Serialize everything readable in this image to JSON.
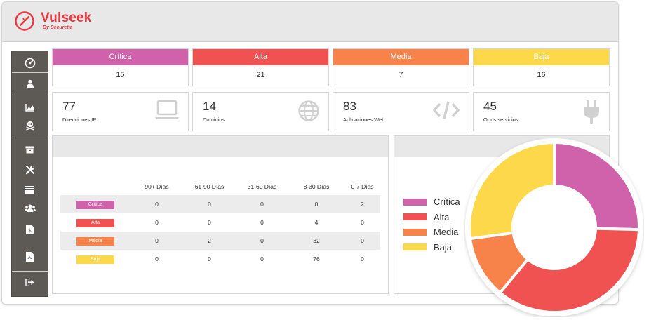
{
  "brand": {
    "name": "Vulseek",
    "tagline": "By Securetia",
    "color": "#e8373f"
  },
  "sidebar": {
    "items": [
      {
        "icon": "dashboard-gauge-icon"
      },
      {
        "icon": "user-icon"
      },
      {
        "icon": "area-chart-icon"
      },
      {
        "icon": "skull-crossbones-icon"
      },
      {
        "icon": "archive-box-icon"
      },
      {
        "icon": "tools-icon"
      },
      {
        "icon": "list-icon"
      },
      {
        "icon": "users-icon"
      },
      {
        "icon": "invoice-file-icon"
      },
      {
        "icon": "pdf-file-icon"
      },
      {
        "icon": "sign-out-icon"
      }
    ]
  },
  "severity": [
    {
      "label": "Crítica",
      "value": "15",
      "color": "#d062ac"
    },
    {
      "label": "Alta",
      "value": "21",
      "color": "#f05252"
    },
    {
      "label": "Media",
      "value": "7",
      "color": "#f7834a"
    },
    {
      "label": "Baja",
      "value": "16",
      "color": "#fdd84a"
    }
  ],
  "assets": [
    {
      "value": "77",
      "label": "Direcciones IP",
      "icon": "laptop-icon"
    },
    {
      "value": "14",
      "label": "Dominios",
      "icon": "globe-icon"
    },
    {
      "value": "83",
      "label": "Aplicaciones Web",
      "icon": "code-icon"
    },
    {
      "value": "45",
      "label": "Ortos servicios",
      "icon": "plug-icon"
    }
  ],
  "aging_table": {
    "headers": [
      "",
      "90+ Días",
      "61-90 Días",
      "31-60 Días",
      "8-30 Días",
      "0-7 Días"
    ],
    "rows": [
      {
        "label": "Crítica",
        "color": "#d062ac",
        "values": [
          "0",
          "0",
          "0",
          "0",
          "2"
        ]
      },
      {
        "label": "Alta",
        "color": "#f05252",
        "values": [
          "0",
          "0",
          "0",
          "4",
          "0"
        ]
      },
      {
        "label": "Media",
        "color": "#f7834a",
        "values": [
          "0",
          "2",
          "0",
          "32",
          "0"
        ]
      },
      {
        "label": "Baja",
        "color": "#fdd84a",
        "values": [
          "0",
          "0",
          "0",
          "76",
          "0"
        ]
      }
    ]
  },
  "chart_data": {
    "type": "pie",
    "variant": "donut",
    "legend_position": "left",
    "categories": [
      "Crítica",
      "Alta",
      "Media",
      "Baja"
    ],
    "values": [
      15,
      21,
      7,
      16
    ],
    "colors": [
      "#d062ac",
      "#f05252",
      "#f7834a",
      "#fdd84a"
    ]
  }
}
